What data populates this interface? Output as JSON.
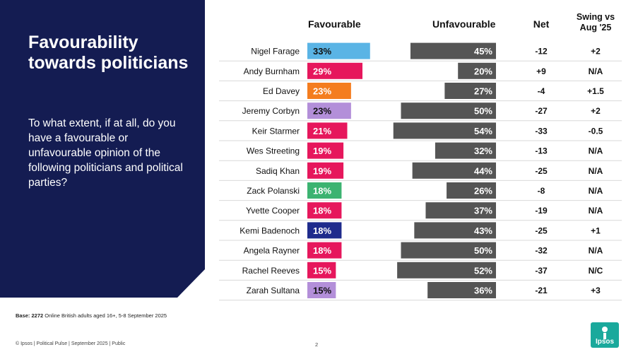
{
  "panel": {
    "title": "Favourability towards politicians",
    "question": "To what extent, if at all, do you have a favourable or unfavourable opinion of the following politicians and political parties?"
  },
  "headers": {
    "favourable": "Favourable",
    "unfavourable": "Unfavourable",
    "net": "Net",
    "swing": "Swing vs Aug '25"
  },
  "footer": {
    "base_label": "Base: 2272",
    "base_text": " Online British adults aged 16+,  5-8 September  2025",
    "copyright": "© Ipsos | Political Pulse | September 2025 | Public",
    "page_number": "2",
    "logo_text": "Ipsos"
  },
  "colors": {
    "panel": "#141c52",
    "unfavourable_bar": "#555555",
    "logo": "#1aa99c"
  },
  "chart_data": {
    "type": "bar",
    "categories": [
      "Nigel Farage",
      "Andy Burnham",
      "Ed Davey",
      "Jeremy Corbyn",
      "Keir Starmer",
      "Wes Streeting",
      "Sadiq Khan",
      "Zack Polanski",
      "Yvette Cooper",
      "Kemi Badenoch",
      "Angela Rayner",
      "Rachel Reeves",
      "Zarah Sultana"
    ],
    "series": [
      {
        "name": "Favourable",
        "values": [
          33,
          29,
          23,
          23,
          21,
          19,
          19,
          18,
          18,
          18,
          18,
          15,
          15
        ],
        "labels": [
          "33%",
          "29%",
          "23%",
          "23%",
          "21%",
          "19%",
          "19%",
          "18%",
          "18%",
          "18%",
          "18%",
          "15%",
          "15%"
        ],
        "colors": [
          "#5ab4e5",
          "#e6175c",
          "#f47d1f",
          "#b38fd9",
          "#e6175c",
          "#e6175c",
          "#e6175c",
          "#3cb371",
          "#e6175c",
          "#1f2b8c",
          "#e6175c",
          "#e6175c",
          "#b38fd9"
        ]
      },
      {
        "name": "Unfavourable",
        "values": [
          45,
          20,
          27,
          50,
          54,
          32,
          44,
          26,
          37,
          43,
          50,
          52,
          36
        ],
        "labels": [
          "45%",
          "20%",
          "27%",
          "50%",
          "54%",
          "32%",
          "44%",
          "26%",
          "37%",
          "43%",
          "50%",
          "52%",
          "36%"
        ],
        "color": "#555555"
      }
    ],
    "net": [
      "-12",
      "+9",
      "-4",
      "-27",
      "-33",
      "-13",
      "-25",
      "-8",
      "-19",
      "-25",
      "-32",
      "-37",
      "-21"
    ],
    "swing": [
      "+2",
      "N/A",
      "+1.5",
      "+2",
      "-0.5",
      "N/A",
      "N/A",
      "N/A",
      "N/A",
      "+1",
      "N/A",
      "N/C",
      "+3"
    ],
    "xlim": [
      0,
      100
    ],
    "title": "Favourability towards politicians",
    "xlabel": "",
    "ylabel": "",
    "grid": false,
    "legend": "none"
  }
}
